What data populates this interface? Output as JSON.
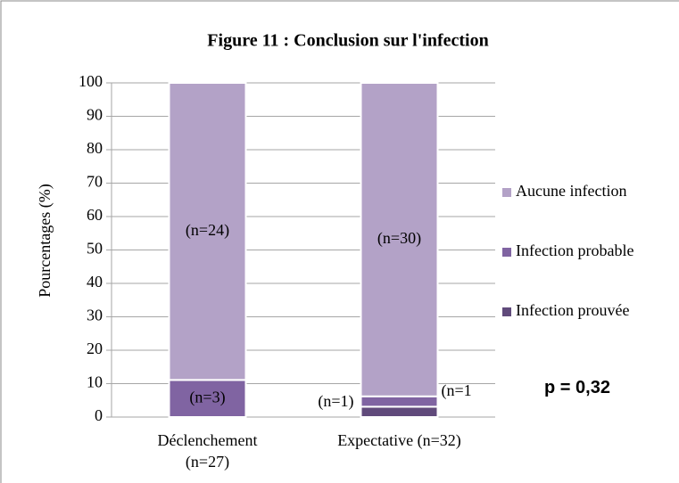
{
  "chart_data": {
    "type": "stacked_bar",
    "title": "Figure 11 : Conclusion sur l'infection",
    "y_label": "Pourcentages (%)",
    "categories": [
      "Déclenchement (n=27)",
      "Expectative (n=32)"
    ],
    "series": [
      {
        "name": "Infection prouvée",
        "color": "#604a7b",
        "values": [
          0,
          3.1
        ],
        "value_labels": [
          null,
          "(n=1)"
        ]
      },
      {
        "name": "Infection probable",
        "color": "#8064a2",
        "values": [
          11.1,
          3.1
        ],
        "value_labels": [
          "(n=3)",
          "(n=1"
        ]
      },
      {
        "name": "Aucune infection",
        "color": "#b3a2c7",
        "values": [
          88.9,
          93.8
        ],
        "value_labels": [
          "(n=24)",
          "(n=30)"
        ]
      }
    ],
    "ylim": [
      0,
      100
    ],
    "yticks": [
      0,
      10,
      20,
      30,
      40,
      50,
      60,
      70,
      80,
      90,
      100
    ],
    "grid": true,
    "legend": "right",
    "annotation": "p = 0,32"
  }
}
